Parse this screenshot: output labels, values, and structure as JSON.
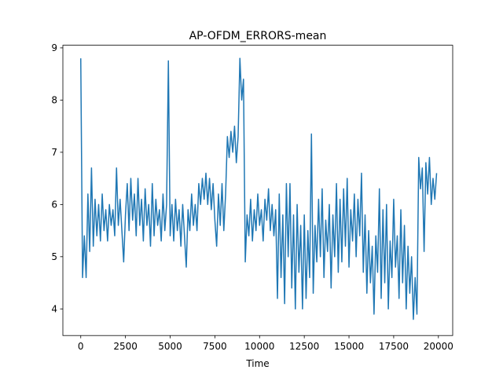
{
  "chart_data": {
    "type": "line",
    "title": "AP-OFDM_ERRORS-mean",
    "xlabel": "Time",
    "x": [
      0,
      100,
      200,
      300,
      400,
      500,
      600,
      700,
      800,
      900,
      1000,
      1100,
      1200,
      1300,
      1400,
      1500,
      1600,
      1700,
      1800,
      1900,
      2000,
      2100,
      2200,
      2300,
      2400,
      2500,
      2600,
      2700,
      2800,
      2900,
      3000,
      3100,
      3200,
      3300,
      3400,
      3500,
      3600,
      3700,
      3800,
      3900,
      4000,
      4100,
      4200,
      4300,
      4400,
      4500,
      4600,
      4700,
      4800,
      4900,
      5000,
      5100,
      5200,
      5300,
      5400,
      5500,
      5600,
      5700,
      5800,
      5900,
      6000,
      6100,
      6200,
      6300,
      6400,
      6500,
      6600,
      6700,
      6800,
      6900,
      7000,
      7100,
      7200,
      7300,
      7400,
      7500,
      7600,
      7700,
      7800,
      7900,
      8000,
      8100,
      8200,
      8300,
      8400,
      8500,
      8600,
      8700,
      8800,
      8900,
      9000,
      9100,
      9200,
      9300,
      9400,
      9500,
      9600,
      9700,
      9800,
      9900,
      10000,
      10100,
      10200,
      10300,
      10400,
      10500,
      10600,
      10700,
      10800,
      10900,
      11000,
      11100,
      11200,
      11300,
      11400,
      11500,
      11600,
      11700,
      11800,
      11900,
      12000,
      12100,
      12200,
      12300,
      12400,
      12500,
      12600,
      12700,
      12800,
      12900,
      13000,
      13100,
      13200,
      13300,
      13400,
      13500,
      13600,
      13700,
      13800,
      13900,
      14000,
      14100,
      14200,
      14300,
      14400,
      14500,
      14600,
      14700,
      14800,
      14900,
      15000,
      15100,
      15200,
      15300,
      15400,
      15500,
      15600,
      15700,
      15800,
      15900,
      16000,
      16100,
      16200,
      16300,
      16400,
      16500,
      16600,
      16700,
      16800,
      16900,
      17000,
      17100,
      17200,
      17300,
      17400,
      17500,
      17600,
      17700,
      17800,
      17900,
      18000,
      18100,
      18200,
      18300,
      18400,
      18500,
      18600,
      18700,
      18800,
      18900,
      19000,
      19100,
      19200,
      19300,
      19400,
      19500,
      19600,
      19700,
      19800,
      19900
    ],
    "series": [
      {
        "color": "#1f77b4",
        "values": [
          8.8,
          4.6,
          5.4,
          4.6,
          6.2,
          5.1,
          6.7,
          5.2,
          6.1,
          5.4,
          6.0,
          5.3,
          6.2,
          5.5,
          5.9,
          5.3,
          6.0,
          5.6,
          5.9,
          5.4,
          6.7,
          5.6,
          6.1,
          5.5,
          4.9,
          5.8,
          6.4,
          5.5,
          6.5,
          5.7,
          6.2,
          5.4,
          6.5,
          5.6,
          6.1,
          5.3,
          6.3,
          5.6,
          6.0,
          5.2,
          6.4,
          5.4,
          6.1,
          5.6,
          5.9,
          5.3,
          6.2,
          5.5,
          6.0,
          8.75,
          5.4,
          6.0,
          5.3,
          6.1,
          5.5,
          5.9,
          5.2,
          6.0,
          5.4,
          4.8,
          5.9,
          5.5,
          6.2,
          5.6,
          6.0,
          5.5,
          6.4,
          6.0,
          6.5,
          6.1,
          6.6,
          6.0,
          6.5,
          5.9,
          6.4,
          5.7,
          5.2,
          6.2,
          5.6,
          6.4,
          5.5,
          6.2,
          7.3,
          6.9,
          7.4,
          7.0,
          7.5,
          6.8,
          7.3,
          8.8,
          8.0,
          8.4,
          4.9,
          5.8,
          5.4,
          6.1,
          5.3,
          5.9,
          5.5,
          6.2,
          5.6,
          5.9,
          5.3,
          6.1,
          5.7,
          6.3,
          5.5,
          6.0,
          5.4,
          5.9,
          4.2,
          6.2,
          4.6,
          5.8,
          4.1,
          6.4,
          5.0,
          6.4,
          4.4,
          5.8,
          4.0,
          6.0,
          4.7,
          5.6,
          4.0,
          5.8,
          4.2,
          5.5,
          4.6,
          7.35,
          4.3,
          5.6,
          4.9,
          6.1,
          5.0,
          6.3,
          4.6,
          5.7,
          5.1,
          6.0,
          4.4,
          5.8,
          5.0,
          6.4,
          4.7,
          6.1,
          4.9,
          6.3,
          5.2,
          6.5,
          4.8,
          5.9,
          5.3,
          6.2,
          5.0,
          6.1,
          5.4,
          6.6,
          4.7,
          5.8,
          4.3,
          5.5,
          4.5,
          5.2,
          3.9,
          5.4,
          4.7,
          6.3,
          4.2,
          5.9,
          4.5,
          6.0,
          4.0,
          5.3,
          4.6,
          6.1,
          4.8,
          5.4,
          4.2,
          5.9,
          4.5,
          5.6,
          4.0,
          5.2,
          4.3,
          5.0,
          3.8,
          4.6,
          3.9,
          6.9,
          6.3,
          6.7,
          5.1,
          6.8,
          6.2,
          6.9,
          6.0,
          6.5,
          6.1,
          6.6
        ]
      }
    ],
    "xlim": [
      -1000,
      20800
    ],
    "ylim": [
      3.49,
      9.05
    ],
    "xticks": [
      0,
      2500,
      5000,
      7500,
      10000,
      12500,
      15000,
      17500,
      20000
    ],
    "yticks": [
      4,
      5,
      6,
      7,
      8,
      9
    ]
  }
}
